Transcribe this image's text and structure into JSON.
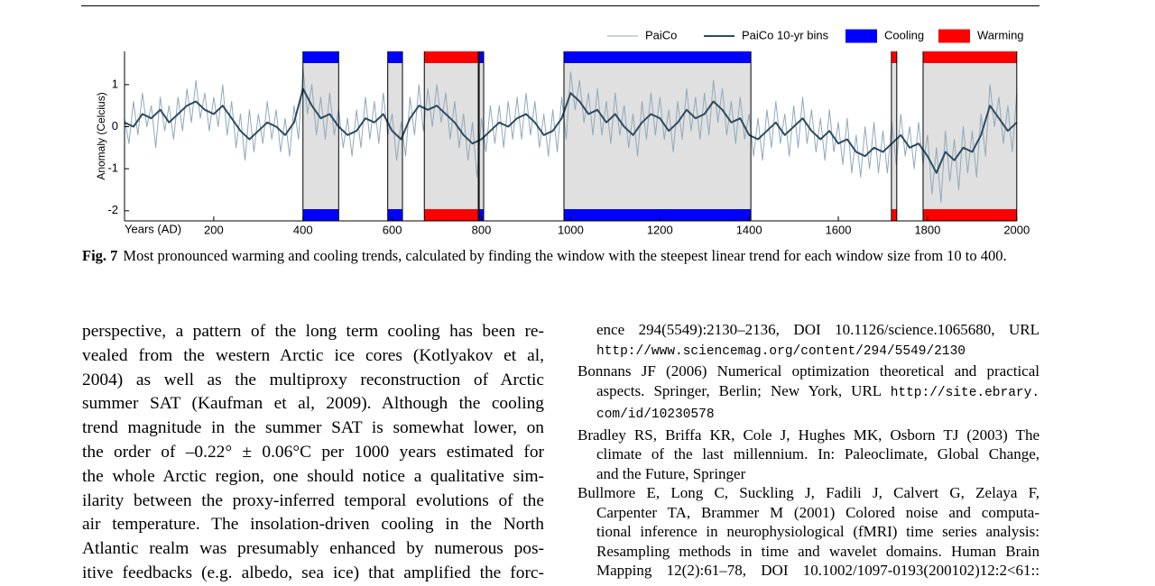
{
  "chart_data": {
    "type": "line",
    "xlabel": "Years (AD)",
    "ylabel": "Anomaly (Celcius)",
    "xlim": [
      0,
      2000
    ],
    "xticks": [
      200,
      400,
      600,
      800,
      1000,
      1200,
      1400,
      1600,
      1800,
      2000
    ],
    "ylim": [
      -2.24,
      1.79
    ],
    "yticks": [
      -2,
      -1,
      0,
      1
    ],
    "shade": "#e0e0e0",
    "series": [
      {
        "name": "PaiCo",
        "color": "#8fa9bc",
        "x": [
          0,
          10,
          20,
          30,
          40,
          50,
          60,
          70,
          80,
          90,
          100,
          110,
          120,
          130,
          140,
          150,
          160,
          170,
          180,
          190,
          200,
          210,
          220,
          230,
          240,
          250,
          260,
          270,
          280,
          290,
          300,
          310,
          320,
          330,
          340,
          350,
          360,
          370,
          380,
          390,
          400,
          410,
          420,
          430,
          440,
          450,
          460,
          470,
          480,
          490,
          500,
          510,
          520,
          530,
          540,
          550,
          560,
          570,
          580,
          590,
          600,
          610,
          620,
          630,
          640,
          650,
          660,
          670,
          680,
          690,
          700,
          710,
          720,
          730,
          740,
          750,
          760,
          770,
          780,
          790,
          800,
          810,
          820,
          830,
          840,
          850,
          860,
          870,
          880,
          890,
          900,
          910,
          920,
          930,
          940,
          950,
          960,
          970,
          980,
          990,
          1000,
          1010,
          1020,
          1030,
          1040,
          1050,
          1060,
          1070,
          1080,
          1090,
          1100,
          1110,
          1120,
          1130,
          1140,
          1150,
          1160,
          1170,
          1180,
          1190,
          1200,
          1210,
          1220,
          1230,
          1240,
          1250,
          1260,
          1270,
          1280,
          1290,
          1300,
          1310,
          1320,
          1330,
          1340,
          1350,
          1360,
          1370,
          1380,
          1390,
          1400,
          1410,
          1420,
          1430,
          1440,
          1450,
          1460,
          1470,
          1480,
          1490,
          1500,
          1510,
          1520,
          1530,
          1540,
          1550,
          1560,
          1570,
          1580,
          1590,
          1600,
          1610,
          1620,
          1630,
          1640,
          1650,
          1660,
          1670,
          1680,
          1690,
          1700,
          1710,
          1720,
          1730,
          1740,
          1750,
          1760,
          1770,
          1780,
          1790,
          1800,
          1810,
          1820,
          1830,
          1840,
          1850,
          1860,
          1870,
          1880,
          1890,
          1900,
          1910,
          1920,
          1930,
          1940,
          1950,
          1960,
          1970,
          1980,
          1990,
          2000
        ],
        "values": [
          0.2,
          -0.4,
          0.6,
          -0.2,
          0.8,
          0.0,
          0.5,
          -0.5,
          0.7,
          -0.1,
          0.5,
          -0.3,
          0.7,
          -0.1,
          0.9,
          0.1,
          1.1,
          0.2,
          0.8,
          -0.1,
          0.7,
          0.0,
          1.0,
          -0.2,
          0.6,
          -0.5,
          0.3,
          -0.8,
          0.4,
          -0.6,
          0.3,
          -0.4,
          0.6,
          -0.3,
          0.4,
          -0.6,
          0.2,
          -0.7,
          0.5,
          -0.3,
          1.4,
          0.3,
          1.0,
          -0.2,
          0.7,
          -0.3,
          0.8,
          -0.2,
          0.4,
          -0.5,
          0.2,
          -0.7,
          0.4,
          -0.5,
          0.7,
          -0.3,
          0.6,
          -0.4,
          0.8,
          -0.2,
          0.3,
          -0.8,
          0.1,
          -0.7,
          0.7,
          -0.2,
          1.0,
          -0.1,
          0.9,
          0.0,
          1.0,
          0.1,
          0.8,
          -0.3,
          0.6,
          -0.5,
          0.3,
          -0.8,
          0.1,
          -1.2,
          0.2,
          -0.6,
          0.5,
          -0.4,
          0.5,
          -0.5,
          0.6,
          -0.3,
          0.7,
          -0.3,
          0.8,
          -0.2,
          0.6,
          -0.5,
          0.3,
          -0.7,
          0.4,
          -0.6,
          0.7,
          -0.3,
          1.3,
          0.4,
          1.1,
          0.1,
          0.8,
          -0.2,
          0.9,
          -0.2,
          0.6,
          -0.4,
          0.8,
          -0.2,
          0.5,
          -0.5,
          0.3,
          -0.7,
          0.6,
          -0.3,
          0.8,
          -0.2,
          0.7,
          -0.3,
          0.4,
          -0.6,
          0.6,
          -0.3,
          0.9,
          -0.1,
          0.7,
          -0.3,
          0.8,
          -0.2,
          1.1,
          0.1,
          0.9,
          -0.2,
          0.6,
          -0.4,
          0.7,
          -0.3,
          0.3,
          -0.7,
          0.2,
          -0.8,
          0.4,
          -0.5,
          0.6,
          -0.4,
          0.3,
          -0.7,
          0.5,
          -0.5,
          0.7,
          -0.4,
          0.4,
          -0.6,
          0.2,
          -0.8,
          0.4,
          -0.6,
          0.1,
          -0.9,
          0.2,
          -1.1,
          -0.2,
          -1.2,
          0.0,
          -1.0,
          0.1,
          -1.1,
          -0.1,
          -1.1,
          0.1,
          -0.9,
          0.3,
          -0.7,
          0.0,
          -1.0,
          0.1,
          -0.9,
          -0.2,
          -1.6,
          -0.5,
          -1.8,
          -0.1,
          -1.3,
          -0.3,
          -1.5,
          0.0,
          -1.1,
          -0.1,
          -1.2,
          0.3,
          -0.7,
          1.0,
          0.0,
          0.7,
          -0.4,
          0.5,
          -0.6,
          0.8
        ]
      },
      {
        "name": "PaiCo 10-yr bins",
        "color": "#2e4a5e",
        "x": [
          0,
          20,
          40,
          60,
          80,
          100,
          120,
          140,
          160,
          180,
          200,
          220,
          240,
          260,
          280,
          300,
          320,
          340,
          360,
          380,
          400,
          420,
          440,
          460,
          480,
          500,
          520,
          540,
          560,
          580,
          600,
          620,
          640,
          660,
          680,
          700,
          720,
          740,
          760,
          780,
          800,
          820,
          840,
          860,
          880,
          900,
          920,
          940,
          960,
          980,
          1000,
          1020,
          1040,
          1060,
          1080,
          1100,
          1120,
          1140,
          1160,
          1180,
          1200,
          1220,
          1240,
          1260,
          1280,
          1300,
          1320,
          1340,
          1360,
          1380,
          1400,
          1420,
          1440,
          1460,
          1480,
          1500,
          1520,
          1540,
          1560,
          1580,
          1600,
          1620,
          1640,
          1660,
          1680,
          1700,
          1720,
          1740,
          1760,
          1780,
          1800,
          1820,
          1840,
          1860,
          1880,
          1900,
          1920,
          1940,
          1960,
          1980,
          2000
        ],
        "values": [
          0.1,
          0.0,
          0.3,
          0.2,
          0.4,
          0.1,
          0.3,
          0.5,
          0.6,
          0.4,
          0.3,
          0.5,
          0.2,
          -0.1,
          -0.3,
          -0.1,
          0.1,
          0.0,
          -0.2,
          0.1,
          0.9,
          0.5,
          0.2,
          0.3,
          0.0,
          -0.2,
          -0.1,
          0.2,
          0.1,
          0.3,
          -0.1,
          -0.3,
          0.2,
          0.5,
          0.4,
          0.5,
          0.3,
          0.1,
          -0.2,
          -0.4,
          -0.3,
          -0.1,
          0.1,
          0.0,
          0.2,
          0.3,
          0.1,
          -0.2,
          -0.1,
          0.2,
          0.8,
          0.6,
          0.3,
          0.4,
          0.1,
          0.3,
          0.0,
          -0.2,
          0.1,
          0.3,
          0.2,
          -0.1,
          0.1,
          0.4,
          0.2,
          0.3,
          0.6,
          0.4,
          0.1,
          0.2,
          -0.2,
          -0.3,
          -0.1,
          0.1,
          -0.2,
          0.0,
          0.2,
          -0.1,
          -0.3,
          -0.1,
          -0.4,
          -0.3,
          -0.6,
          -0.7,
          -0.5,
          -0.6,
          -0.4,
          -0.2,
          -0.5,
          -0.4,
          -0.7,
          -1.1,
          -0.6,
          -0.8,
          -0.5,
          -0.6,
          -0.2,
          0.5,
          0.2,
          -0.1,
          0.1
        ]
      },
      {
        "name": "Cooling",
        "color": "#0000ff",
        "windows": [
          [
            400,
            480
          ],
          [
            590,
            623
          ],
          [
            795,
            805
          ],
          [
            985,
            1404
          ]
        ]
      },
      {
        "name": "Warming",
        "color": "#ff0000",
        "windows": [
          [
            672,
            793
          ],
          [
            1719,
            1731
          ],
          [
            1790,
            2000
          ]
        ]
      }
    ]
  },
  "caption": {
    "label": "Fig. 7",
    "text": "Most pronounced warming and cooling trends, calculated by finding the window with the steepest linear trend for each window size from 10 to 400."
  },
  "left_column": {
    "lines": [
      "perspective, a pattern of the long term cooling has been re-",
      "vealed from the western Arctic ice cores (Kotlyakov et al,",
      "2004) as well as the multiproxy reconstruction of Arctic",
      "summer SAT (Kaufman et al, 2009). Although the cooling",
      "trend magnitude in the summer SAT is somewhat lower, on",
      "the order of –0.22° ± 0.06°C per 1000 years estimated for",
      "the whole Arctic region, one should notice a qualitative sim-",
      "ilarity between the proxy-inferred temporal evolutions of the",
      "air temperature. The insolation-driven cooling in the North",
      "Atlantic realm was presumably enhanced by numerous pos-",
      "itive feedbacks (e.g. albedo, sea ice) that amplified the forc-"
    ]
  },
  "right_column": {
    "references": [
      {
        "lines": [
          {
            "text": "ence 294(5549):2130–2136, DOI 10.1126/science.1065680, URL"
          },
          {
            "url": "http://www.sciencemag.org/content/294/5549/2130"
          }
        ]
      },
      {
        "lines": [
          {
            "text": "Bonnans JF (2006) Numerical optimization theoretical and practical"
          },
          {
            "text": "aspects. Springer, Berlin; New York, URL",
            "url": "http://site.ebrary."
          },
          {
            "url": "com/id/10230578"
          }
        ]
      },
      {
        "lines": [
          {
            "text": "Bradley RS, Briffa KR, Cole J, Hughes MK, Osborn TJ (2003) The"
          },
          {
            "text": "climate of the last millennium. In: Paleoclimate, Global Change,"
          },
          {
            "text": "and the Future, Springer"
          }
        ]
      },
      {
        "lines": [
          {
            "text": "Bullmore E, Long C, Suckling J, Fadili J, Calvert G, Zelaya F,"
          },
          {
            "text": "Carpenter TA, Brammer M (2001) Colored noise and computa-"
          },
          {
            "text": "tional inference in neurophysiological (fMRI) time series analysis:"
          },
          {
            "text": "Resampling methods in time and wavelet domains. Human Brain"
          },
          {
            "text": "Mapping 12(2):61–78, DOI 10.1002/1097-0193(200102)12:2<61::"
          }
        ]
      }
    ]
  }
}
